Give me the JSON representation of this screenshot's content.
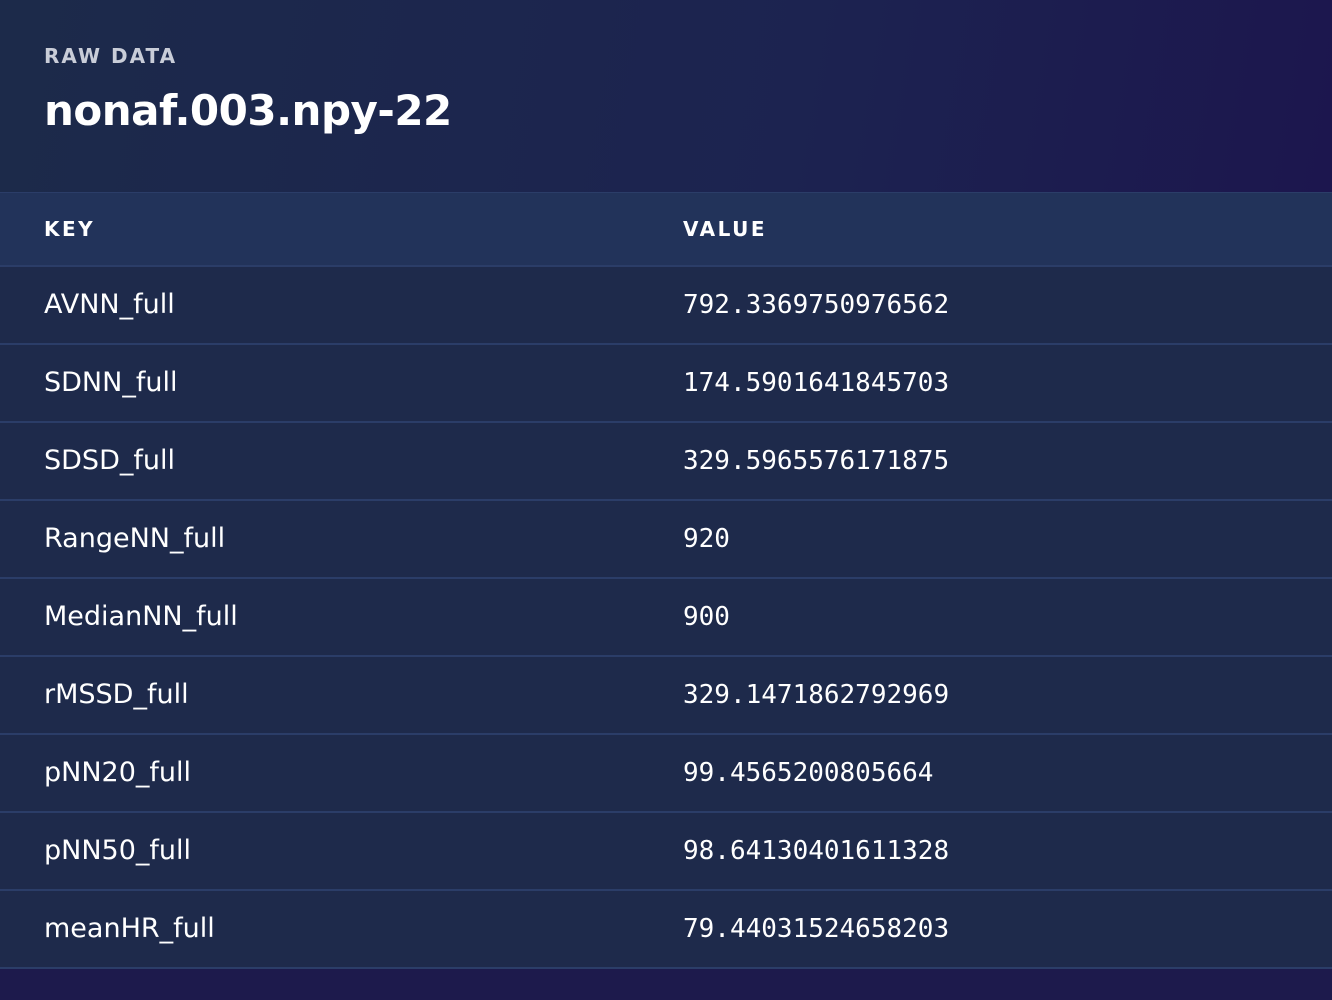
{
  "header": {
    "eyebrow": "RAW DATA",
    "title": "nonaf.003.npy-22"
  },
  "table": {
    "columns": [
      "KEY",
      "VALUE"
    ],
    "rows": [
      {
        "key": "AVNN_full",
        "value": "792.3369750976562"
      },
      {
        "key": "SDNN_full",
        "value": "174.5901641845703"
      },
      {
        "key": "SDSD_full",
        "value": "329.5965576171875"
      },
      {
        "key": "RangeNN_full",
        "value": "920"
      },
      {
        "key": "MedianNN_full",
        "value": "900"
      },
      {
        "key": "rMSSD_full",
        "value": "329.1471862792969"
      },
      {
        "key": "pNN20_full",
        "value": "99.4565200805664"
      },
      {
        "key": "pNN50_full",
        "value": "98.64130401611328"
      },
      {
        "key": "meanHR_full",
        "value": "79.44031524658203"
      }
    ]
  }
}
